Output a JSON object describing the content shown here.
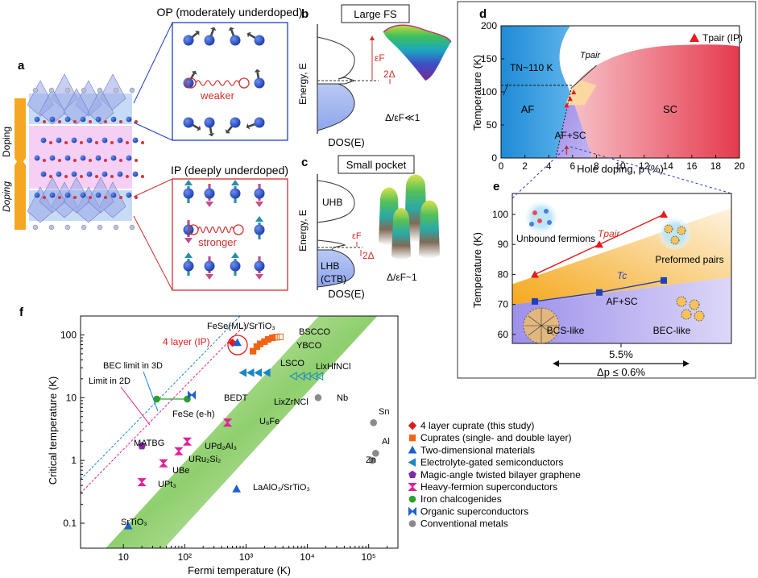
{
  "panel_a": {
    "letter": "a",
    "doping_top": "Doping",
    "doping_bottom": "Doping"
  },
  "panel_op": {
    "title": "OP (moderately underdoped)",
    "spring_label": "weaker"
  },
  "panel_ip": {
    "title": "IP (deeply underdoped)",
    "spring_label": "stronger"
  },
  "panel_b": {
    "letter": "b",
    "title": "Large FS",
    "ylabel": "Energy, E",
    "xlabel": "DOS(E)",
    "ef_label": "εF",
    "gap_label": "2Δ",
    "ratio_label": "Δ/εF≪1"
  },
  "panel_c": {
    "letter": "c",
    "title": "Small pocket",
    "ylabel": "Energy, E",
    "xlabel": "DOS(E)",
    "uhb_label": "UHB",
    "lhb_label": "LHB",
    "ctb_label": "(CTB)",
    "ef_label": "εF",
    "gap_label": "2Δ",
    "ratio_label": "Δ/εF~1"
  },
  "chart_data": [
    {
      "panel": "d",
      "type": "area",
      "xlabel": "Hole doping, p (%)",
      "ylabel": "Temperature (K)",
      "xlim": [
        0,
        20
      ],
      "ylim": [
        0,
        200
      ],
      "xticks": [
        0,
        2,
        4,
        6,
        8,
        10,
        12,
        14,
        16,
        18,
        20
      ],
      "yticks": [
        0,
        50,
        100,
        150,
        200
      ],
      "regions": [
        "AF",
        "AF+SC",
        "SC"
      ],
      "tn_label": "TN~110 K",
      "tpair_label": "Tpair",
      "legend": "Tpair (IP)",
      "legend_placement": "top-right",
      "series": [
        {
          "name": "Tpair (IP)",
          "x": [
            5.5,
            5.8,
            6.1
          ],
          "y": [
            80,
            90,
            100
          ]
        }
      ]
    },
    {
      "panel": "e",
      "type": "line",
      "ylabel": "Temperature (K)",
      "ylim": [
        57,
        107
      ],
      "yticks": [
        60,
        70,
        80,
        90,
        100
      ],
      "series": [
        {
          "name": "Tpair",
          "x": [
            0,
            1,
            2
          ],
          "y": [
            80,
            90,
            100
          ]
        },
        {
          "name": "Tc",
          "x": [
            0,
            1,
            2
          ],
          "y": [
            71,
            74,
            78
          ]
        }
      ],
      "annotations": [
        "Unbound fermions",
        "Preformed pairs",
        "AF+SC",
        "BCS-like",
        "BEC-like"
      ],
      "doping_mark": "5.5%",
      "range_label": "Δp ≤ 0.6%"
    },
    {
      "panel": "f",
      "type": "scatter",
      "xlabel": "Fermi temperature (K)",
      "ylabel": "Critical temperature (K)",
      "xscale": "log",
      "yscale": "log",
      "xlim": [
        2,
        300000
      ],
      "ylim": [
        0.04,
        200
      ],
      "xtick_labels": [
        "10",
        "10²",
        "10³",
        "10⁴",
        "10⁵"
      ],
      "ytick_labels": [
        "0.1",
        "1",
        "10",
        "100"
      ],
      "lines": [
        "BEC limit in 3D",
        "Limit in 2D"
      ],
      "series": [
        {
          "name": "4 layer cuprate (this study)",
          "color": "#e41a1c",
          "shape": "diamond",
          "points": [
            {
              "x": 600,
              "y": 75
            }
          ]
        },
        {
          "name": "Cuprates (single- and double layer)",
          "color": "#f06414",
          "shape": "square",
          "points": [
            {
              "x": 1300,
              "y": 55
            },
            {
              "x": 1500,
              "y": 65
            },
            {
              "x": 1700,
              "y": 72
            },
            {
              "x": 2000,
              "y": 78
            },
            {
              "x": 2300,
              "y": 85
            },
            {
              "x": 2700,
              "y": 90
            },
            {
              "x": 3100,
              "y": 92
            },
            {
              "x": 3600,
              "y": 93
            }
          ]
        },
        {
          "name": "Two-dimensional materials",
          "color": "#1f5fd0",
          "shape": "triangle-up",
          "points": [
            {
              "x": 720,
              "y": 75
            },
            {
              "x": 700,
              "y": 0.35
            },
            {
              "x": 12,
              "y": 0.09
            }
          ]
        },
        {
          "name": "Electrolyte-gated semiconductors",
          "color": "#1a86c7",
          "shape": "triangle-left",
          "points": [
            {
              "x": 900,
              "y": 25
            },
            {
              "x": 1200,
              "y": 25
            },
            {
              "x": 1600,
              "y": 25
            },
            {
              "x": 2200,
              "y": 25
            },
            {
              "x": 6000,
              "y": 22
            },
            {
              "x": 8000,
              "y": 22
            },
            {
              "x": 10000,
              "y": 22
            },
            {
              "x": 13000,
              "y": 22
            },
            {
              "x": 16000,
              "y": 22
            }
          ]
        },
        {
          "name": "Magic-angle twisted bilayer graphene",
          "color": "#7d2ca8",
          "shape": "pentagon",
          "points": [
            {
              "x": 20,
              "y": 1.7
            }
          ]
        },
        {
          "name": "Heavy-fermion superconductors",
          "color": "#e1209c",
          "shape": "hourglass",
          "points": [
            {
              "x": 20,
              "y": 0.45
            },
            {
              "x": 45,
              "y": 0.9
            },
            {
              "x": 80,
              "y": 1.4
            },
            {
              "x": 110,
              "y": 2.0
            },
            {
              "x": 500,
              "y": 4.0
            }
          ]
        },
        {
          "name": "Iron chalcogenides",
          "color": "#2ca02c",
          "shape": "circle",
          "points": [
            {
              "x": 35,
              "y": 9.5
            },
            {
              "x": 110,
              "y": 9.5
            }
          ]
        },
        {
          "name": "Organic superconductors",
          "color": "#1f5fd0",
          "shape": "bowtie",
          "points": [
            {
              "x": 130,
              "y": 11
            }
          ]
        },
        {
          "name": "Conventional metals",
          "color": "#8a8a8a",
          "shape": "circle",
          "points": [
            {
              "x": 15000,
              "y": 10
            },
            {
              "x": 120000,
              "y": 4
            },
            {
              "x": 130000,
              "y": 1.3
            },
            {
              "x": 115000,
              "y": 1.0
            }
          ]
        }
      ],
      "point_labels": [
        {
          "text": "4 layer (IP)",
          "color": "#e41a1c"
        },
        {
          "text": "FeSe(ML)/SrTiO₃"
        },
        {
          "text": "BSCCO"
        },
        {
          "text": "YBCO"
        },
        {
          "text": "LSCO"
        },
        {
          "text": "LixHfNCl"
        },
        {
          "text": "LixZrNCl"
        },
        {
          "text": "BEDT"
        },
        {
          "text": "Nb"
        },
        {
          "text": "FeSe (e-h)"
        },
        {
          "text": "U₆Fe"
        },
        {
          "text": "MATBG"
        },
        {
          "text": "UPd₂Al₃"
        },
        {
          "text": "URu₂Si₂"
        },
        {
          "text": "UBe"
        },
        {
          "text": "UPt₃"
        },
        {
          "text": "LaAlO₃/SrTiO₃"
        },
        {
          "text": "SrTiO₃"
        },
        {
          "text": "Sn"
        },
        {
          "text": "Al"
        },
        {
          "text": "Zn"
        }
      ]
    }
  ],
  "letters": {
    "d": "d",
    "e": "e",
    "f": "f"
  }
}
